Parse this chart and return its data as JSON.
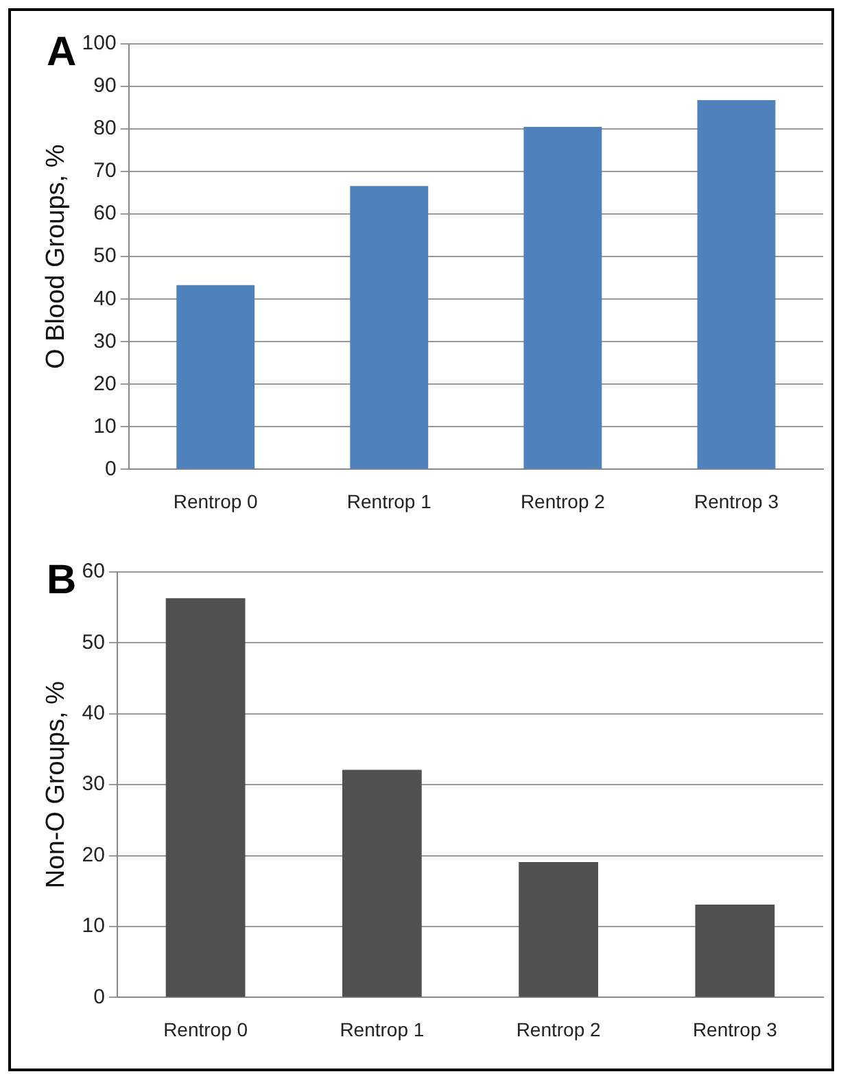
{
  "chart_data": [
    {
      "type": "bar",
      "title": "A",
      "ylabel": "O Blood Groups, %",
      "categories": [
        "Rentrop 0",
        "Rentrop 1",
        "Rentrop 2",
        "Rentrop 3"
      ],
      "values": [
        43.3,
        66.6,
        80.5,
        86.8
      ],
      "color": "#4f81bd",
      "ylim": [
        0,
        100
      ],
      "yticks": [
        0,
        10,
        20,
        30,
        40,
        50,
        60,
        70,
        80,
        90,
        100
      ],
      "grid": "y"
    },
    {
      "type": "bar",
      "title": "B",
      "ylabel": "Non-O Groups, %",
      "categories": [
        "Rentrop 0",
        "Rentrop 1",
        "Rentrop 2",
        "Rentrop 3"
      ],
      "values": [
        56.3,
        32.1,
        19.1,
        13.1
      ],
      "color": "#505050",
      "ylim": [
        0,
        60
      ],
      "yticks": [
        0,
        10,
        20,
        30,
        40,
        50,
        60
      ],
      "grid": "y"
    }
  ]
}
